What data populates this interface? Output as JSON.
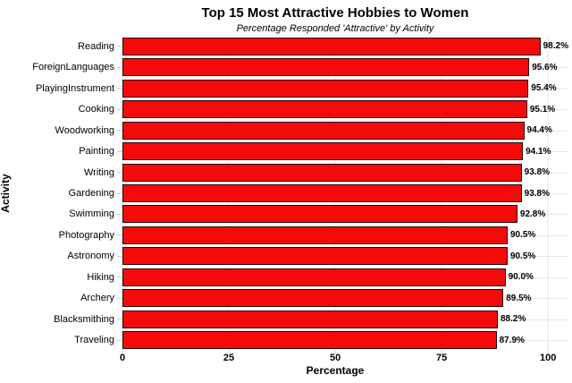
{
  "chart_data": {
    "type": "bar",
    "orientation": "horizontal",
    "title": "Top 15 Most Attractive Hobbies to Women",
    "subtitle": "Percentage Responded 'Attractive' by Activity",
    "xlabel": "Percentage",
    "ylabel": "Activity",
    "xlim": [
      0,
      100
    ],
    "xticks": [
      0,
      25,
      50,
      75,
      100
    ],
    "grid": true,
    "legend": "none",
    "categories": [
      "Reading",
      "ForeignLanguages",
      "PlayingInstrument",
      "Cooking",
      "Woodworking",
      "Painting",
      "Writing",
      "Gardening",
      "Swimming",
      "Photography",
      "Astronomy",
      "Hiking",
      "Archery",
      "Blacksmithing",
      "Traveling"
    ],
    "values": [
      98.2,
      95.6,
      95.4,
      95.1,
      94.4,
      94.1,
      93.8,
      93.8,
      92.8,
      90.5,
      90.5,
      90.0,
      89.5,
      88.2,
      87.9
    ],
    "value_labels": [
      "98.2%",
      "95.6%",
      "95.4%",
      "95.1%",
      "94.4%",
      "94.1%",
      "93.8%",
      "93.8%",
      "92.8%",
      "90.5%",
      "90.5%",
      "90.0%",
      "89.5%",
      "88.2%",
      "87.9%"
    ],
    "colors": {
      "bar_fill": "#f50a0a",
      "bar_border": "#2b0303",
      "grid": "#e6e6e6",
      "text": "#000000",
      "background": "#ffffff"
    }
  }
}
